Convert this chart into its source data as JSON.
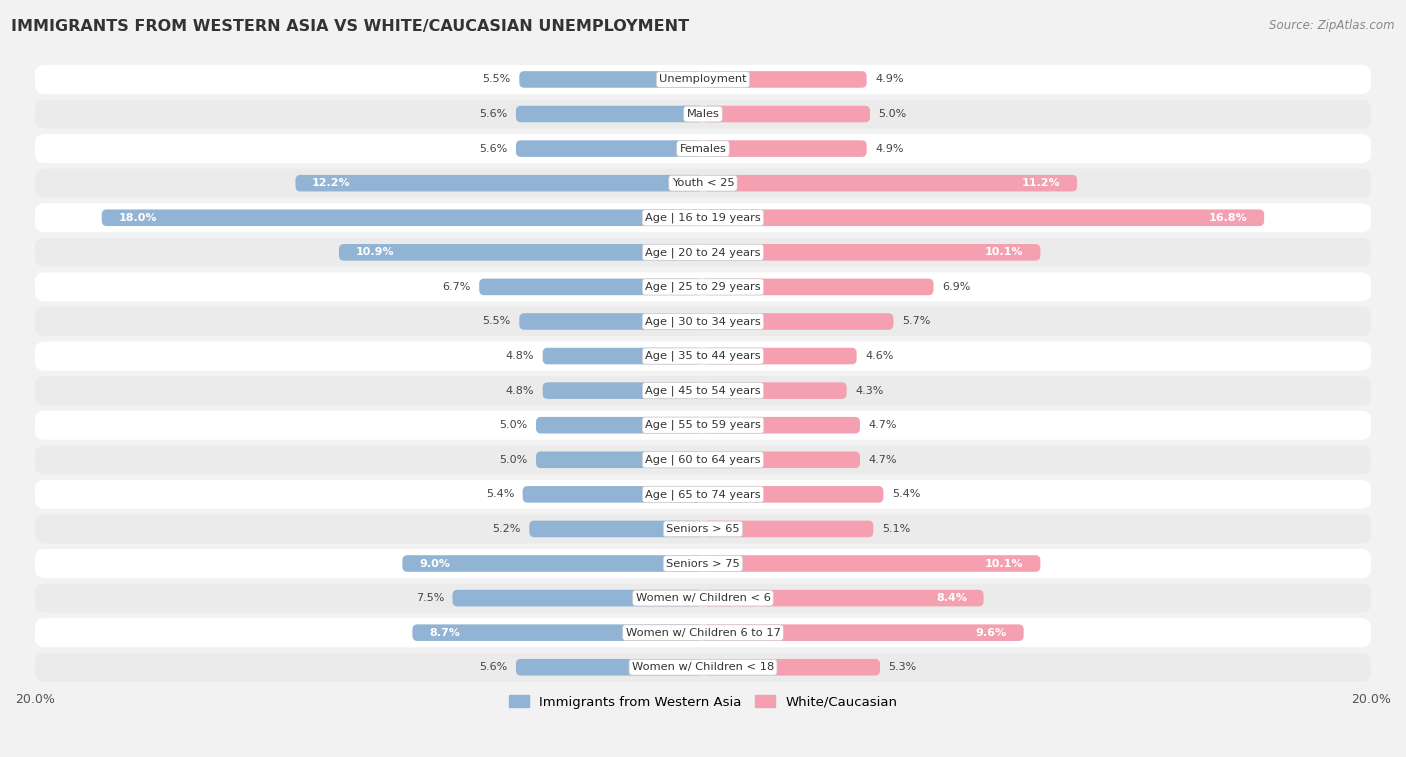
{
  "title": "IMMIGRANTS FROM WESTERN ASIA VS WHITE/CAUCASIAN UNEMPLOYMENT",
  "source": "Source: ZipAtlas.com",
  "categories": [
    "Unemployment",
    "Males",
    "Females",
    "Youth < 25",
    "Age | 16 to 19 years",
    "Age | 20 to 24 years",
    "Age | 25 to 29 years",
    "Age | 30 to 34 years",
    "Age | 35 to 44 years",
    "Age | 45 to 54 years",
    "Age | 55 to 59 years",
    "Age | 60 to 64 years",
    "Age | 65 to 74 years",
    "Seniors > 65",
    "Seniors > 75",
    "Women w/ Children < 6",
    "Women w/ Children 6 to 17",
    "Women w/ Children < 18"
  ],
  "left_values": [
    5.5,
    5.6,
    5.6,
    12.2,
    18.0,
    10.9,
    6.7,
    5.5,
    4.8,
    4.8,
    5.0,
    5.0,
    5.4,
    5.2,
    9.0,
    7.5,
    8.7,
    5.6
  ],
  "right_values": [
    4.9,
    5.0,
    4.9,
    11.2,
    16.8,
    10.1,
    6.9,
    5.7,
    4.6,
    4.3,
    4.7,
    4.7,
    5.4,
    5.1,
    10.1,
    8.4,
    9.6,
    5.3
  ],
  "left_color": "#92b4d4",
  "right_color": "#f4a0b0",
  "bg_color": "#f2f2f2",
  "row_bg_white": "#ffffff",
  "row_bg_gray": "#ebebeb",
  "max_val": 20.0,
  "legend_left": "Immigrants from Western Asia",
  "legend_right": "White/Caucasian",
  "label_threshold": 8.0
}
